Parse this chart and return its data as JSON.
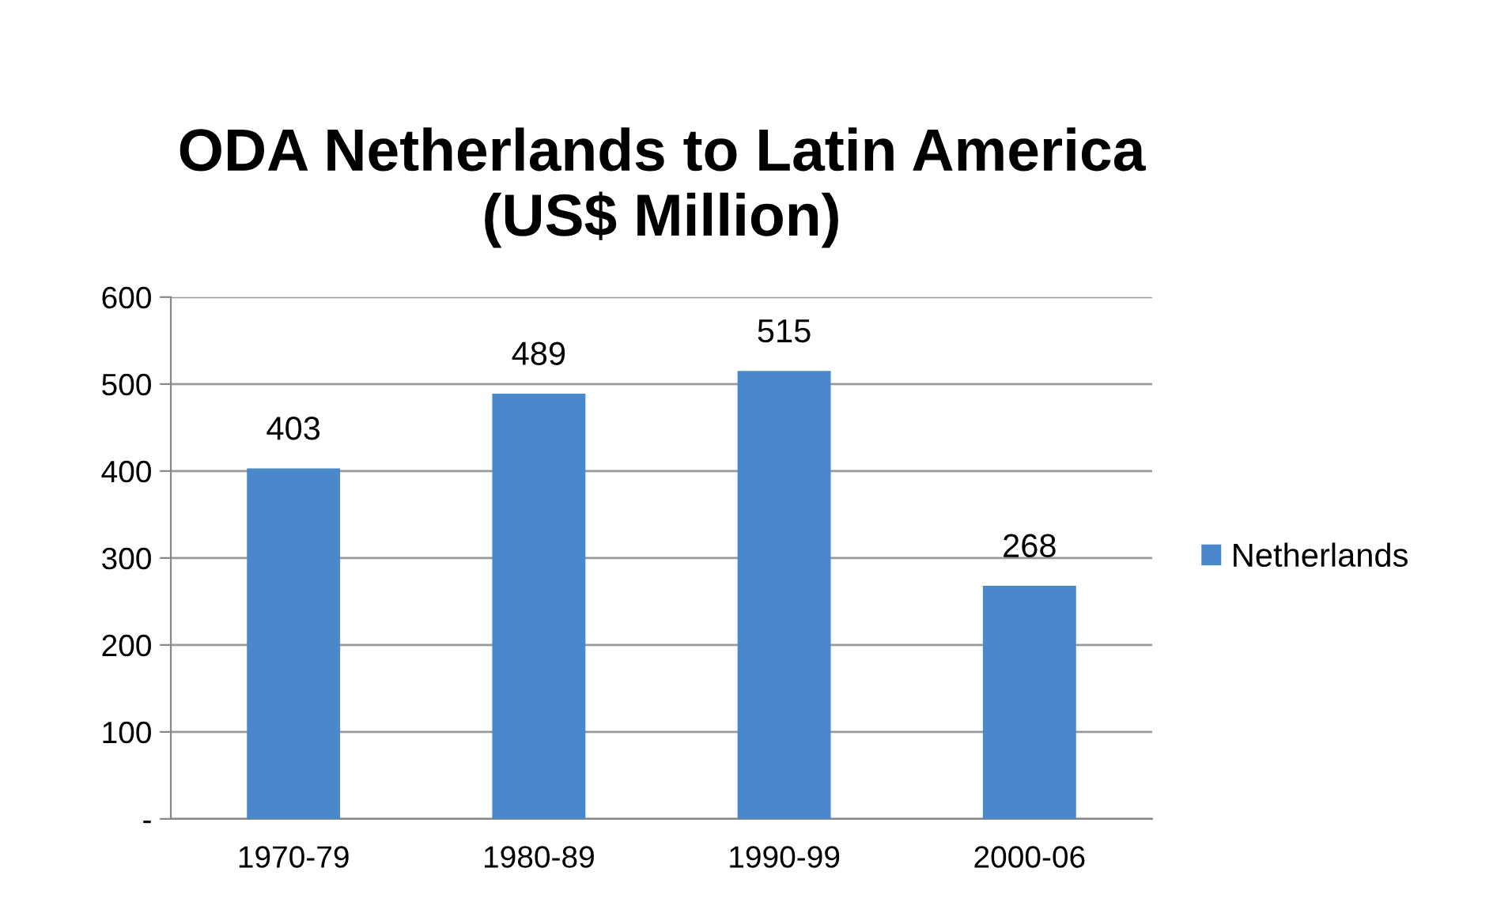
{
  "chart_data": {
    "type": "bar",
    "title": "ODA Netherlands to Latin America\n(US$ Million)",
    "categories": [
      "1970-79",
      "1980-89",
      "1990-99",
      "2000-06"
    ],
    "series": [
      {
        "name": "Netherlands",
        "color": "#4a88cc",
        "values": [
          403,
          489,
          515,
          268
        ]
      }
    ],
    "ylim": [
      0,
      600
    ],
    "yticks": [
      {
        "value": 0,
        "label": "-"
      },
      100,
      200,
      300,
      400,
      500,
      600
    ],
    "grid": "y",
    "legend": "right",
    "data_labels": true
  }
}
